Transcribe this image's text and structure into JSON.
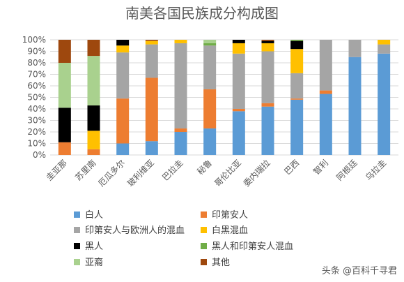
{
  "chart_data": {
    "type": "bar",
    "stacked": true,
    "percent": true,
    "title": "南美各国民族成分构成图",
    "categories": [
      "圭亚那",
      "苏里南",
      "厄瓜多尔",
      "玻利维亚",
      "巴拉圭",
      "秘鲁",
      "哥伦比亚",
      "委内瑞拉",
      "巴西",
      "智利",
      "阿根廷",
      "乌拉圭"
    ],
    "ylim": [
      0,
      100
    ],
    "yticks": [
      "0%",
      "10%",
      "20%",
      "30%",
      "40%",
      "50%",
      "60%",
      "70%",
      "80%",
      "90%",
      "100%"
    ],
    "grid": true,
    "legend_position": "bottom",
    "series": [
      {
        "name": "白人",
        "color": "#5B9BD5",
        "values": [
          0,
          0,
          10,
          12,
          20,
          23,
          38,
          42,
          48,
          53,
          85,
          88
        ]
      },
      {
        "name": "印第安人",
        "color": "#ED7D31",
        "values": [
          11,
          5,
          39,
          55,
          3,
          34,
          2,
          3,
          1,
          3,
          0,
          0
        ]
      },
      {
        "name": "印第安人与欧洲人的混血",
        "color": "#A5A5A5",
        "values": [
          0,
          0,
          40,
          29,
          74,
          38,
          48,
          45,
          22,
          44,
          15,
          8
        ]
      },
      {
        "name": "白黑混血",
        "color": "#FFC000",
        "values": [
          0,
          16,
          6,
          3,
          3,
          0,
          9,
          7,
          21,
          0,
          0,
          4
        ]
      },
      {
        "name": "黑人",
        "color": "#000000",
        "values": [
          30,
          22,
          5,
          0,
          0,
          0,
          3,
          2,
          7,
          0,
          0,
          0
        ]
      },
      {
        "name": "黑人和印第安人混血",
        "color": "#70AD47",
        "values": [
          0,
          0,
          0,
          0,
          0,
          2,
          0,
          0,
          1,
          0,
          0,
          0
        ]
      },
      {
        "name": "亚裔",
        "color": "#A9D18E",
        "values": [
          39,
          43,
          0,
          0,
          0,
          3,
          0,
          0,
          0,
          0,
          0,
          0
        ]
      },
      {
        "name": "其他",
        "color": "#9E480E",
        "values": [
          20,
          14,
          0,
          1,
          0,
          0,
          0,
          1,
          0,
          0,
          0,
          0
        ]
      }
    ]
  },
  "watermark": "头条 @百科千寻君"
}
